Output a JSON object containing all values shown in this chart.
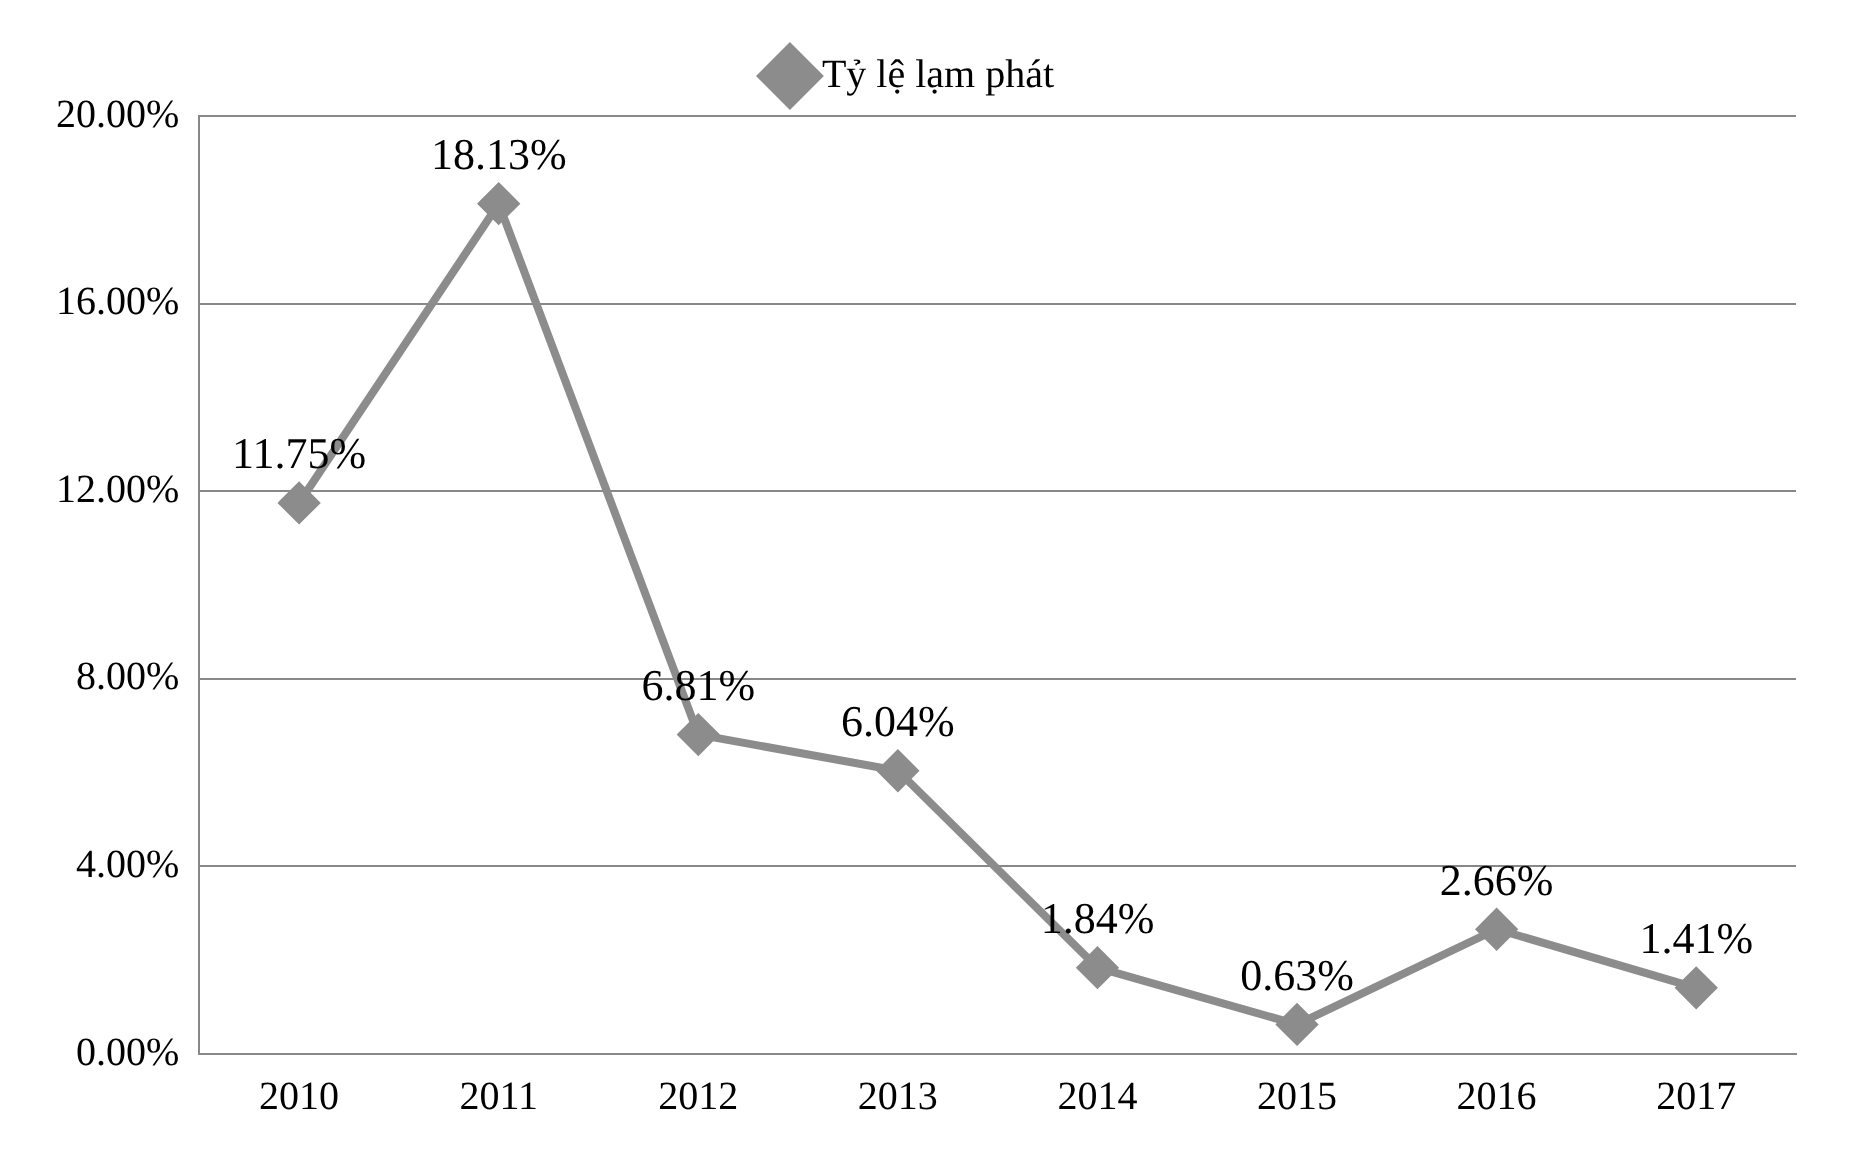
{
  "chart_data": {
    "type": "line",
    "categories": [
      "2010",
      "2011",
      "2012",
      "2013",
      "2014",
      "2015",
      "2016",
      "2017"
    ],
    "series": [
      {
        "name": "Tỷ lệ lạm phát",
        "color": "#8c8c8c",
        "values": [
          11.75,
          18.13,
          6.81,
          6.04,
          1.84,
          0.63,
          2.66,
          1.41
        ],
        "value_labels": [
          "11.75%",
          "18.13%",
          "6.81%",
          "6.04%",
          "1.84%",
          "0.63%",
          "2.66%",
          "1.41%"
        ]
      }
    ],
    "ylim": [
      0,
      20
    ],
    "yticks": [
      {
        "value": 0,
        "label": "0.00%"
      },
      {
        "value": 4,
        "label": "4.00%"
      },
      {
        "value": 8,
        "label": "8.00%"
      },
      {
        "value": 12,
        "label": "12.00%"
      },
      {
        "value": 16,
        "label": "16.00%"
      },
      {
        "value": 20,
        "label": "20.00%"
      }
    ],
    "grid": "y",
    "legend": "top",
    "marker": "diamond",
    "line_style": "solid"
  }
}
